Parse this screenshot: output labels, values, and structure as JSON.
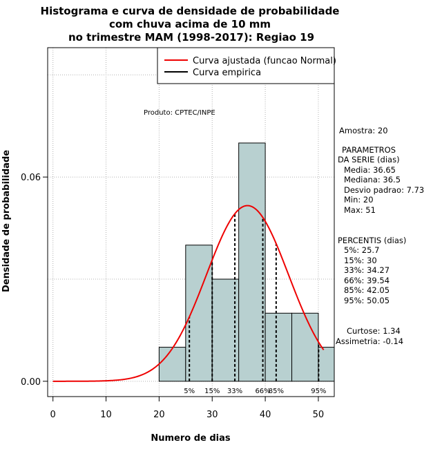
{
  "chart_data": {
    "type": "bar",
    "title": [
      "Histograma e curva de densidade de probabilidade",
      "com chuva acima de 10 mm",
      "no trimestre MAM (1998-2017): Regiao 19"
    ],
    "xlabel": "Numero de dias",
    "ylabel": "Densidade de probabilidade",
    "xlim": [
      -1,
      53
    ],
    "ylim": [
      -0.0045,
      0.098
    ],
    "x_ticks": [
      "0",
      "10",
      "20",
      "30",
      "40",
      "50"
    ],
    "y_ticks": [
      "0.00",
      "0.06"
    ],
    "grid": true,
    "bins": [
      {
        "x0": 20,
        "x1": 25,
        "density": 0.01
      },
      {
        "x0": 25,
        "x1": 30,
        "density": 0.04
      },
      {
        "x0": 30,
        "x1": 35,
        "density": 0.03
      },
      {
        "x0": 35,
        "x1": 40,
        "density": 0.07
      },
      {
        "x0": 40,
        "x1": 45,
        "density": 0.02
      },
      {
        "x0": 45,
        "x1": 50,
        "density": 0.02
      },
      {
        "x0": 50,
        "x1": 55,
        "density": 0.01
      }
    ],
    "bar_color": "#b8d0d0",
    "normal_curve": {
      "mean": 36.65,
      "sd": 7.73,
      "x_from": 0,
      "x_to": 51,
      "color": "#ee0000"
    },
    "percentile_lines": [
      {
        "label": "5%",
        "x": 25.7
      },
      {
        "label": "15%",
        "x": 30
      },
      {
        "label": "33%",
        "x": 34.27
      },
      {
        "label": "66%",
        "x": 39.54
      },
      {
        "label": "85%",
        "x": 42.05
      },
      {
        "label": "95%",
        "x": 50.05
      }
    ],
    "legend": {
      "placement": "top-right",
      "entries": [
        {
          "name": "Curva ajustada (funcao Normal)",
          "color": "#ee0000"
        },
        {
          "name": "Curva empirica",
          "color": "#000000"
        }
      ]
    },
    "annotation_product": "Produto: CPTEC/INPE",
    "side_stats": {
      "sample": "Amostra: 20",
      "params_title": [
        "PARAMETROS",
        "DA SERIE (dias)"
      ],
      "params": [
        "Media: 36.65",
        "Mediana: 36.5",
        "Desvio padrao: 7.73",
        "Min: 20",
        "Max: 51"
      ],
      "percentis_title": "PERCENTIS (dias)",
      "percentis": [
        "5%: 25.7",
        "15%: 30",
        "33%: 34.27",
        "66%: 39.54",
        "85%: 42.05",
        "95%: 50.05"
      ],
      "shape": [
        "Curtose: 1.34",
        "Assimetria: -0.14"
      ]
    }
  }
}
